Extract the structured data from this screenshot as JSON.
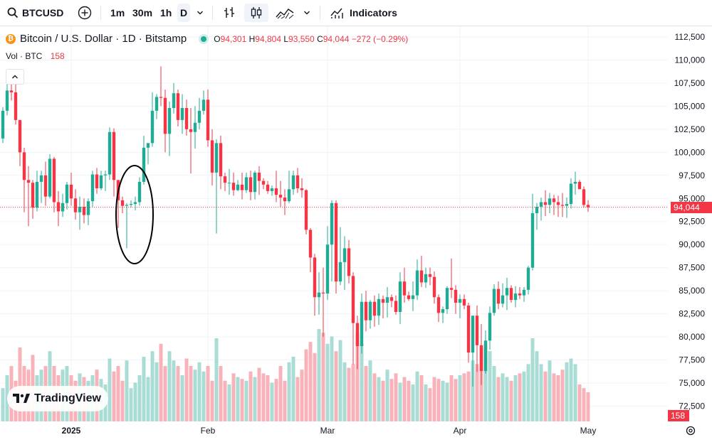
{
  "toolbar": {
    "symbol": "BTCUSD",
    "intervals": [
      "1m",
      "30m",
      "1h",
      "D"
    ],
    "indicators_label": "Indicators"
  },
  "legend": {
    "title": "Bitcoin / U.S. Dollar · 1D · Bitstamp",
    "open_label": "O",
    "open": "94,301",
    "high_label": "H",
    "high": "94,804",
    "low_label": "L",
    "low": "93,550",
    "close_label": "C",
    "close": "94,044",
    "change": "−272 (−0.29%)"
  },
  "volume_legend": {
    "label": "Vol · BTC",
    "value": "158"
  },
  "watermark": "TradingView",
  "colors": {
    "up": "#22ab94",
    "down": "#f23645",
    "up_volume": "#a8dcd5",
    "down_volume": "#f7b3b9",
    "price_tag": "#f23645"
  },
  "chart_data": {
    "type": "candlestick",
    "symbol": "BTCUSD",
    "interval": "1D",
    "y_axis": {
      "labels": [
        "112,500",
        "110,000",
        "107,500",
        "105,000",
        "102,500",
        "100,000",
        "97,500",
        "95,000",
        "92,500",
        "90,000",
        "87,500",
        "85,000",
        "82,500",
        "80,000",
        "77,500",
        "75,000",
        "72,500"
      ],
      "range": [
        70500,
        113000
      ]
    },
    "x_axis": {
      "labels": [
        "2025",
        "Feb",
        "Mar",
        "Apr",
        "May"
      ]
    },
    "last_price": "94,044",
    "last_volume": "158",
    "candles": [
      [
        101500,
        104900,
        101000,
        104500,
        180
      ],
      [
        104500,
        107800,
        104000,
        106700,
        250
      ],
      [
        106700,
        108200,
        105600,
        106500,
        300
      ],
      [
        106500,
        107600,
        103000,
        103500,
        220
      ],
      [
        103500,
        103500,
        98500,
        100000,
        400
      ],
      [
        100000,
        100500,
        93500,
        97000,
        300
      ],
      [
        97000,
        98500,
        92000,
        96700,
        280
      ],
      [
        96700,
        97000,
        92800,
        94000,
        360
      ],
      [
        94000,
        98000,
        93600,
        96800,
        250
      ],
      [
        96800,
        98000,
        94500,
        97500,
        280
      ],
      [
        97500,
        99000,
        94200,
        95200,
        300
      ],
      [
        95200,
        99800,
        95000,
        99300,
        380
      ],
      [
        99300,
        99500,
        93500,
        94600,
        300
      ],
      [
        94600,
        95800,
        92000,
        93600,
        250
      ],
      [
        93600,
        95500,
        93000,
        94500,
        280
      ],
      [
        94500,
        96800,
        93800,
        96500,
        300
      ],
      [
        96500,
        97800,
        94200,
        95000,
        250
      ],
      [
        95000,
        96000,
        92700,
        93500,
        220
      ],
      [
        93500,
        95200,
        91600,
        94100,
        260
      ],
      [
        94100,
        95000,
        92300,
        93200,
        240
      ],
      [
        93200,
        95000,
        92100,
        94700,
        220
      ],
      [
        94700,
        98000,
        94100,
        97600,
        250
      ],
      [
        97600,
        98300,
        95500,
        96100,
        280
      ],
      [
        96100,
        98000,
        95900,
        97500,
        230
      ],
      [
        97500,
        98000,
        95800,
        97600,
        200
      ],
      [
        97600,
        102700,
        97000,
        102200,
        340
      ],
      [
        102200,
        102600,
        95200,
        97000,
        270
      ],
      [
        97000,
        97000,
        91800,
        94800,
        300
      ],
      [
        94800,
        95200,
        93400,
        94200,
        220
      ],
      [
        94200,
        94500,
        89600,
        94300,
        330
      ],
      [
        94300,
        94800,
        94000,
        94400,
        180
      ],
      [
        94400,
        95200,
        93700,
        94600,
        210
      ],
      [
        94600,
        97300,
        94200,
        96800,
        250
      ],
      [
        96800,
        101800,
        96500,
        100500,
        350
      ],
      [
        100500,
        101000,
        98700,
        101000,
        240
      ],
      [
        101000,
        106500,
        100600,
        104500,
        380
      ],
      [
        104500,
        106300,
        103600,
        106000,
        320
      ],
      [
        106000,
        109300,
        105000,
        105900,
        420
      ],
      [
        105900,
        106800,
        100000,
        102000,
        300
      ],
      [
        102000,
        105500,
        99600,
        104800,
        380
      ],
      [
        104800,
        107500,
        104200,
        106400,
        330
      ],
      [
        106400,
        106800,
        102800,
        103500,
        300
      ],
      [
        103500,
        106300,
        102000,
        104800,
        250
      ],
      [
        104800,
        105700,
        101800,
        102500,
        340
      ],
      [
        102500,
        104800,
        97700,
        102200,
        300
      ],
      [
        102200,
        105000,
        100400,
        103200,
        280
      ],
      [
        103200,
        105900,
        102500,
        104500,
        320
      ],
      [
        104500,
        106700,
        104100,
        105700,
        270
      ],
      [
        105700,
        106800,
        100600,
        101300,
        300
      ],
      [
        101300,
        102500,
        96400,
        97800,
        220
      ],
      [
        97800,
        101400,
        91200,
        101000,
        450
      ],
      [
        101000,
        101800,
        96000,
        97400,
        300
      ],
      [
        97400,
        97800,
        95800,
        96700,
        220
      ],
      [
        96700,
        98200,
        95400,
        96700,
        200
      ],
      [
        96700,
        97800,
        95300,
        95900,
        260
      ],
      [
        95900,
        97000,
        95800,
        96500,
        240
      ],
      [
        96500,
        97800,
        94900,
        95900,
        230
      ],
      [
        95900,
        97800,
        95600,
        97300,
        220
      ],
      [
        97300,
        98000,
        94800,
        95700,
        270
      ],
      [
        95700,
        98000,
        94900,
        97800,
        240
      ],
      [
        97800,
        98500,
        95400,
        96900,
        290
      ],
      [
        96900,
        97200,
        96000,
        96500,
        260
      ],
      [
        96500,
        96900,
        95500,
        95800,
        250
      ],
      [
        95800,
        96400,
        95300,
        96100,
        210
      ],
      [
        96100,
        98000,
        94600,
        95400,
        230
      ],
      [
        95400,
        96900,
        94100,
        95100,
        300
      ],
      [
        95100,
        96000,
        93200,
        94700,
        220
      ],
      [
        94700,
        98000,
        94500,
        96000,
        320
      ],
      [
        96000,
        98000,
        95400,
        97500,
        350
      ],
      [
        97500,
        98300,
        95600,
        96100,
        240
      ],
      [
        96100,
        97200,
        95100,
        95900,
        280
      ],
      [
        95900,
        96000,
        91100,
        91600,
        390
      ],
      [
        91600,
        91800,
        87000,
        88600,
        430
      ],
      [
        88600,
        89000,
        82300,
        84300,
        370
      ],
      [
        84300,
        87000,
        82400,
        84800,
        500
      ],
      [
        84800,
        87500,
        80000,
        84700,
        480
      ],
      [
        84700,
        92000,
        84000,
        90000,
        420
      ],
      [
        90000,
        94800,
        86000,
        94500,
        460
      ],
      [
        94500,
        94800,
        84700,
        86000,
        380
      ],
      [
        86000,
        91900,
        85600,
        88100,
        440
      ],
      [
        88100,
        90900,
        85100,
        89600,
        320
      ],
      [
        89600,
        90500,
        85800,
        86600,
        290
      ],
      [
        86600,
        87000,
        77000,
        81500,
        310
      ],
      [
        81500,
        82300,
        76500,
        79000,
        480
      ],
      [
        79000,
        84700,
        78200,
        83800,
        420
      ],
      [
        83800,
        85000,
        80600,
        81800,
        300
      ],
      [
        81800,
        84000,
        80900,
        83800,
        330
      ],
      [
        83800,
        84500,
        81100,
        82300,
        260
      ],
      [
        82300,
        84700,
        81300,
        84100,
        240
      ],
      [
        84100,
        84500,
        82000,
        83700,
        220
      ],
      [
        83700,
        85400,
        82100,
        84300,
        280
      ],
      [
        84300,
        84600,
        83200,
        83900,
        230
      ],
      [
        83900,
        84500,
        82400,
        82700,
        260
      ],
      [
        82700,
        87000,
        81400,
        86000,
        210
      ],
      [
        86000,
        87500,
        83700,
        84500,
        240
      ],
      [
        84500,
        84900,
        83900,
        84100,
        220
      ],
      [
        84100,
        86000,
        82800,
        84500,
        200
      ],
      [
        84500,
        88400,
        84000,
        87200,
        270
      ],
      [
        87200,
        88800,
        85400,
        85900,
        250
      ],
      [
        85900,
        87500,
        85300,
        86800,
        200
      ],
      [
        86800,
        87500,
        85600,
        86500,
        180
      ],
      [
        86500,
        87100,
        83600,
        84300,
        240
      ],
      [
        84300,
        84600,
        81600,
        82600,
        230
      ],
      [
        82600,
        83300,
        81500,
        83000,
        220
      ],
      [
        83000,
        85500,
        82500,
        85300,
        210
      ],
      [
        85300,
        88500,
        84200,
        85100,
        250
      ],
      [
        85100,
        85600,
        82500,
        83700,
        230
      ],
      [
        83700,
        84600,
        82000,
        84100,
        250
      ],
      [
        84100,
        84600,
        83000,
        83400,
        260
      ],
      [
        83400,
        83700,
        77200,
        78300,
        270
      ],
      [
        78300,
        82000,
        74600,
        82300,
        330
      ],
      [
        82300,
        83400,
        76200,
        79100,
        310
      ],
      [
        79100,
        81400,
        74800,
        76300,
        400
      ],
      [
        76300,
        80700,
        76000,
        79600,
        420
      ],
      [
        79600,
        83300,
        78600,
        82600,
        380
      ],
      [
        82600,
        85700,
        82300,
        85200,
        300
      ],
      [
        85200,
        86000,
        83000,
        83600,
        240
      ],
      [
        83600,
        85800,
        83200,
        84500,
        260
      ],
      [
        84500,
        86400,
        82900,
        85300,
        240
      ],
      [
        85300,
        85600,
        83700,
        84000,
        220
      ],
      [
        84000,
        85500,
        83200,
        84700,
        250
      ],
      [
        84700,
        85400,
        84100,
        84500,
        260
      ],
      [
        84500,
        85400,
        83800,
        85100,
        270
      ],
      [
        85100,
        87700,
        84600,
        87500,
        310
      ],
      [
        87500,
        95500,
        87200,
        93400,
        450
      ],
      [
        93400,
        94500,
        91600,
        94100,
        380
      ],
      [
        94100,
        95100,
        92600,
        94600,
        310
      ],
      [
        94600,
        95900,
        93100,
        94300,
        270
      ],
      [
        94300,
        95600,
        93400,
        95000,
        330
      ],
      [
        95000,
        95400,
        93200,
        94600,
        260
      ],
      [
        94600,
        95300,
        93000,
        94300,
        250
      ],
      [
        94300,
        95600,
        93000,
        94200,
        280
      ],
      [
        94200,
        95100,
        92900,
        94400,
        320
      ],
      [
        94400,
        97200,
        93900,
        96600,
        340
      ],
      [
        96600,
        97900,
        95400,
        96800,
        310
      ],
      [
        96800,
        97000,
        96000,
        96000,
        200
      ],
      [
        96000,
        96300,
        94000,
        94300,
        180
      ],
      [
        94301,
        94804,
        93550,
        94044,
        158
      ]
    ]
  }
}
